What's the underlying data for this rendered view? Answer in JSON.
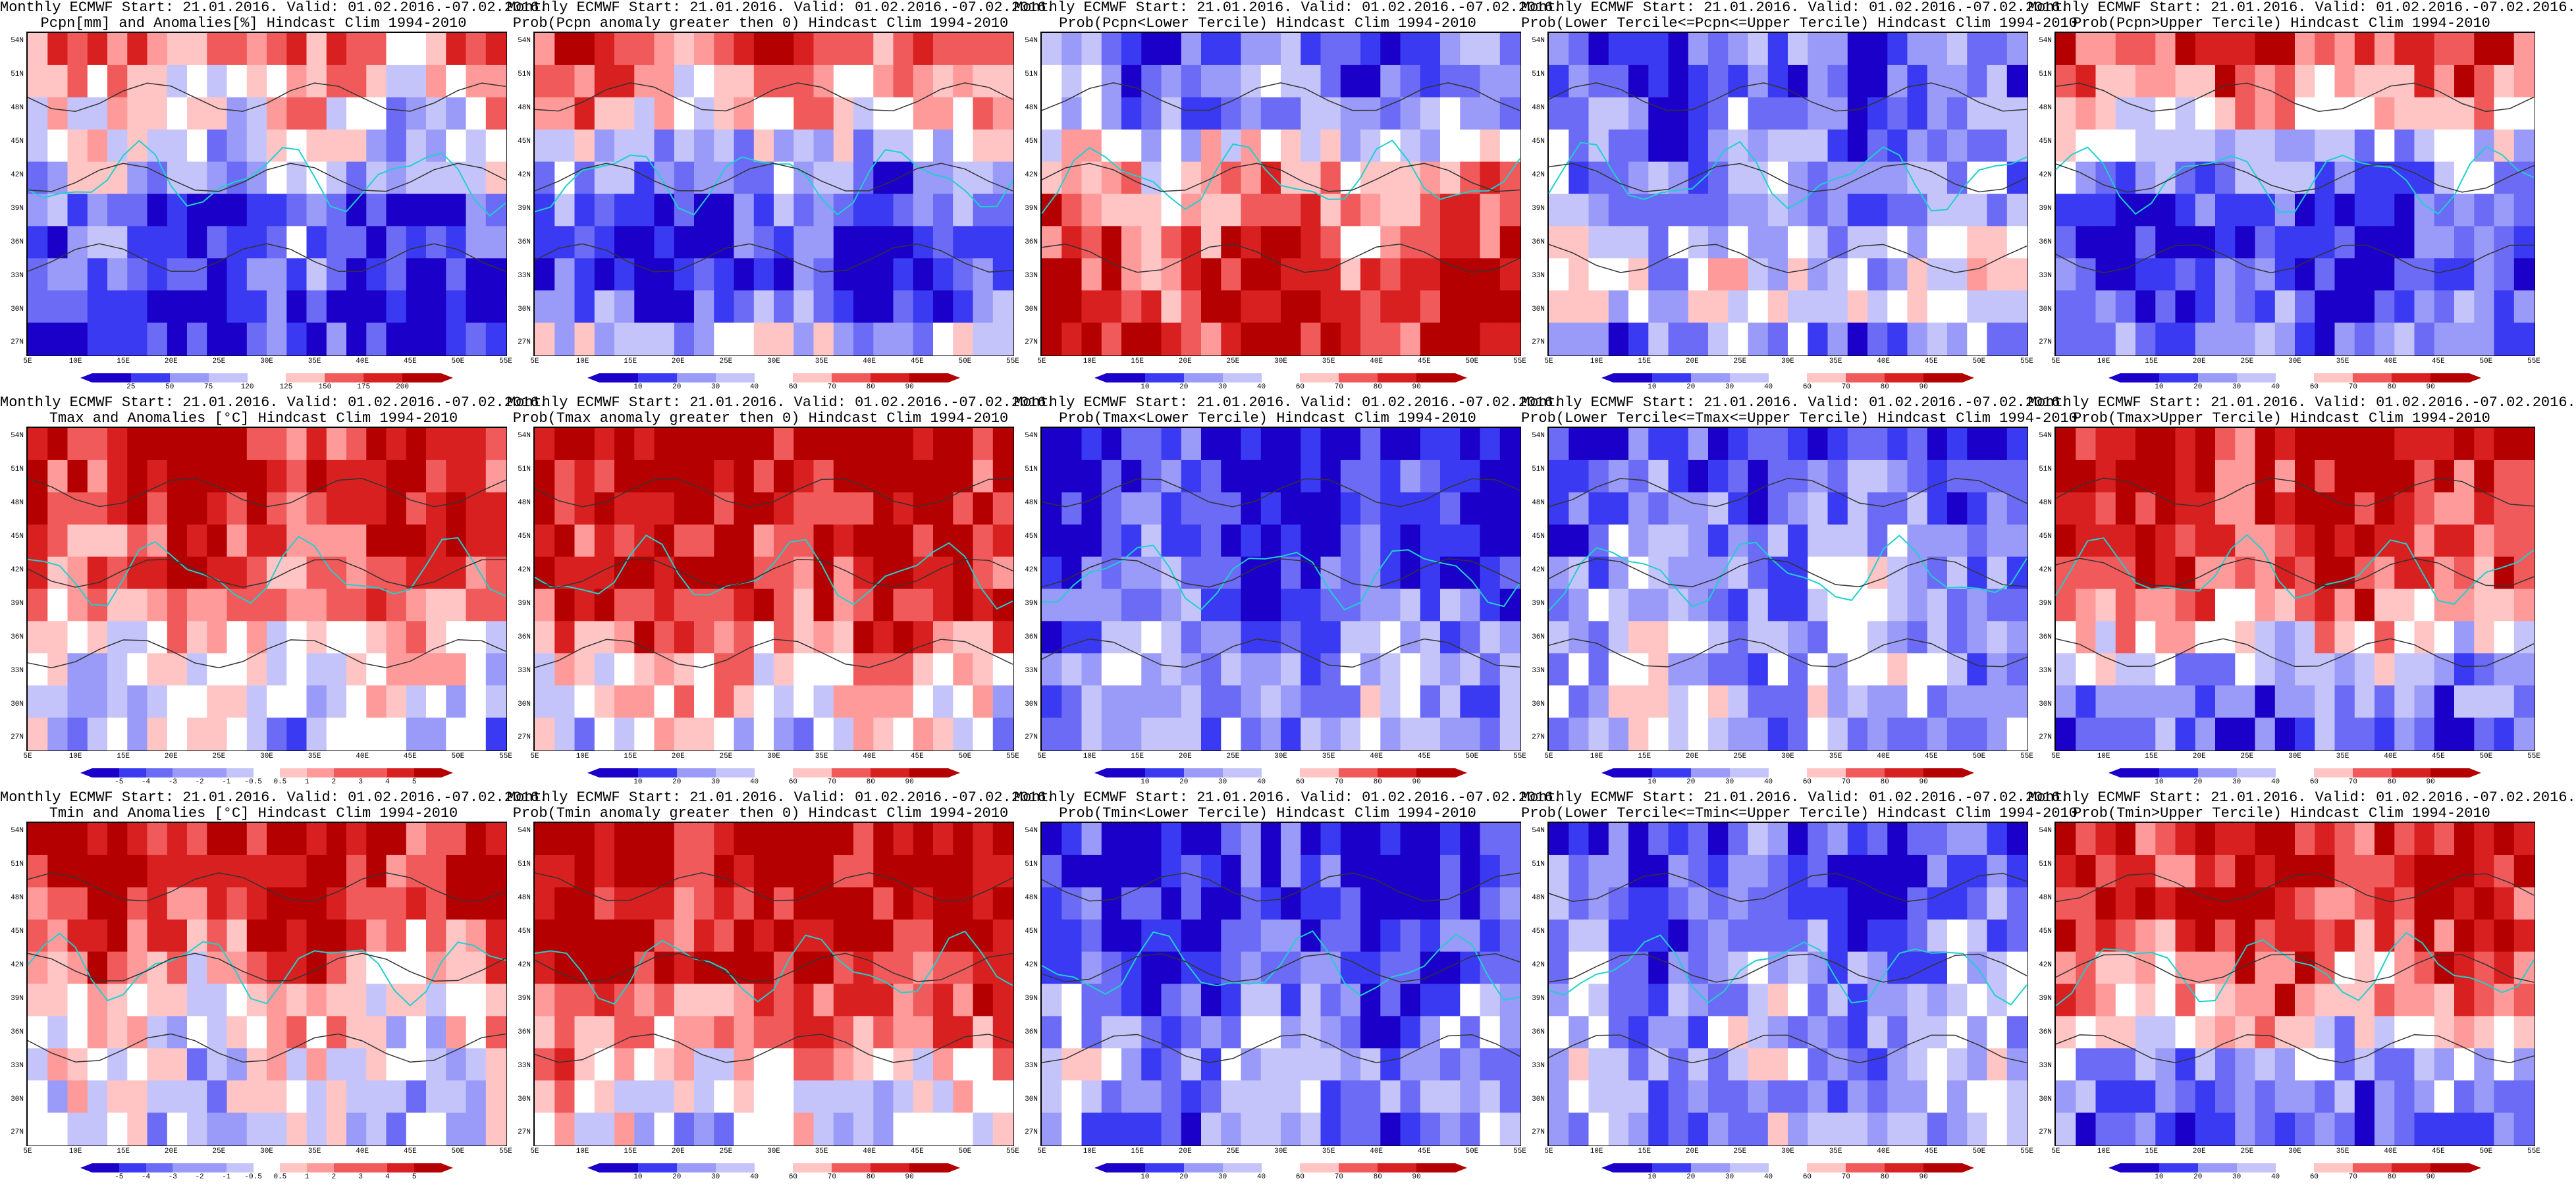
{
  "colors": {
    "blue_ramp": [
      "#1a00c8",
      "#3a3af2",
      "#6b6bf5",
      "#9a9af8",
      "#c4c4fa",
      "#ffffff",
      "#ffc4c4",
      "#ff9a9a",
      "#f05a5a",
      "#d82020",
      "#b40000"
    ],
    "contour": "#333333",
    "coast": "#1fd0d0"
  },
  "axes": {
    "y_labels": [
      "54N",
      "51N",
      "48N",
      "45N",
      "42N",
      "39N",
      "36N",
      "33N",
      "30N",
      "27N"
    ],
    "x_labels": [
      "5E",
      "10E",
      "15E",
      "20E",
      "25E",
      "30E",
      "35E",
      "40E",
      "45E",
      "50E",
      "55E"
    ]
  },
  "colorbars": {
    "anom_pcpn": [
      "25",
      "50",
      "75",
      "120",
      "125",
      "150",
      "175",
      "200"
    ],
    "anom_temp": [
      "-5",
      "-4",
      "-3",
      "-2",
      "-1",
      "-0.5",
      "0.5",
      "1",
      "2",
      "3",
      "4",
      "5"
    ],
    "prob": [
      "10",
      "20",
      "30",
      "40",
      "60",
      "70",
      "80",
      "90"
    ]
  },
  "panels": [
    {
      "t1": "Monthly ECMWF Start: 21.01.2016. Valid: 01.02.2016.-07.02.2016.",
      "t2": "Pcpn[mm] and Anomalies[%] Hindcast Clim 1994-2010",
      "cbar": "anom_pcpn",
      "tone": [
        0.7,
        0.6,
        0.5,
        0.45,
        0.35,
        0.25,
        0.2,
        0.15,
        0.1,
        0.15
      ]
    },
    {
      "t1": "Monthly ECMWF Start: 21.01.2016. Valid: 01.02.2016.-07.02.2016.",
      "t2": "Prob(Pcpn anomaly greater then 0) Hindcast Clim 1994-2010",
      "cbar": "prob",
      "tone": [
        0.8,
        0.7,
        0.6,
        0.4,
        0.3,
        0.2,
        0.15,
        0.1,
        0.2,
        0.4
      ]
    },
    {
      "t1": "Monthly ECMWF Start: 21.01.2016. Valid: 01.02.2016.-07.02.2016.",
      "t2": "Prob(Pcpn<Lower Tercile) Hindcast Clim 1994-2010",
      "cbar": "prob",
      "tone": [
        0.2,
        0.25,
        0.3,
        0.5,
        0.65,
        0.7,
        0.75,
        0.8,
        0.85,
        0.9
      ]
    },
    {
      "t1": "Monthly ECMWF Start: 21.01.2016. Valid: 01.02.2016.-07.02.2016.",
      "t2": "Prob(Lower Tercile<=Pcpn<=Upper Tercile) Hindcast Clim 1994-2010",
      "cbar": "prob",
      "tone": [
        0.2,
        0.2,
        0.3,
        0.25,
        0.3,
        0.35,
        0.4,
        0.45,
        0.5,
        0.3
      ]
    },
    {
      "t1": "Monthly ECMWF Start: 21.01.2016. Valid: 01.02.2016.-07.02.2016.",
      "t2": "Prob(Pcpn>Upper Tercile) Hindcast Clim 1994-2010",
      "cbar": "prob",
      "tone": [
        0.85,
        0.7,
        0.6,
        0.4,
        0.3,
        0.2,
        0.15,
        0.1,
        0.2,
        0.3
      ]
    },
    {
      "t1": "Monthly ECMWF Start: 21.01.2016. Valid: 01.02.2016.-07.02.2016.",
      "t2": "Tmax and Anomalies [°C] Hindcast Clim 1994-2010",
      "cbar": "anom_temp",
      "tone": [
        0.9,
        0.88,
        0.85,
        0.8,
        0.75,
        0.7,
        0.6,
        0.5,
        0.45,
        0.4
      ]
    },
    {
      "t1": "Monthly ECMWF Start: 21.01.2016. Valid: 01.02.2016.-07.02.2016.",
      "t2": "Prob(Tmax anomaly greater then 0) Hindcast Clim 1994-2010",
      "cbar": "prob",
      "tone": [
        0.95,
        0.95,
        0.92,
        0.9,
        0.88,
        0.85,
        0.75,
        0.6,
        0.55,
        0.5
      ]
    },
    {
      "t1": "Monthly ECMWF Start: 21.01.2016. Valid: 01.02.2016.-07.02.2016.",
      "t2": "Prob(Tmax<Lower Tercile) Hindcast Clim 1994-2010",
      "cbar": "prob",
      "tone": [
        0.1,
        0.1,
        0.12,
        0.15,
        0.2,
        0.25,
        0.3,
        0.35,
        0.35,
        0.3
      ]
    },
    {
      "t1": "Monthly ECMWF Start: 21.01.2016. Valid: 01.02.2016.-07.02.2016.",
      "t2": "Prob(Lower Tercile<=Tmax<=Upper Tercile) Hindcast Clim 1994-2010",
      "cbar": "prob",
      "tone": [
        0.15,
        0.2,
        0.25,
        0.3,
        0.35,
        0.35,
        0.4,
        0.4,
        0.4,
        0.35
      ]
    },
    {
      "t1": "Monthly ECMWF Start: 21.01.2016. Valid: 01.02.2016.-07.02.2016.",
      "t2": "Prob(Tmax>Upper Tercile) Hindcast Clim 1994-2010",
      "cbar": "prob",
      "tone": [
        0.9,
        0.9,
        0.88,
        0.85,
        0.8,
        0.7,
        0.55,
        0.4,
        0.3,
        0.2
      ]
    },
    {
      "t1": "Monthly ECMWF Start: 21.01.2016. Valid: 01.02.2016.-07.02.2016.",
      "t2": "Tmin and Anomalies [°C] Hindcast Clim 1994-2010",
      "cbar": "anom_temp",
      "tone": [
        0.92,
        0.9,
        0.85,
        0.78,
        0.7,
        0.6,
        0.55,
        0.5,
        0.45,
        0.4
      ]
    },
    {
      "t1": "Monthly ECMWF Start: 21.01.2016. Valid: 01.02.2016.-07.02.2016.",
      "t2": "Prob(Tmin anomaly greater then 0) Hindcast Clim 1994-2010",
      "cbar": "prob",
      "tone": [
        0.95,
        0.93,
        0.9,
        0.9,
        0.88,
        0.8,
        0.7,
        0.6,
        0.5,
        0.45
      ]
    },
    {
      "t1": "Monthly ECMWF Start: 21.01.2016. Valid: 01.02.2016.-07.02.2016.",
      "t2": "Prob(Tmin<Lower Tercile) Hindcast Clim 1994-2010",
      "cbar": "prob",
      "tone": [
        0.1,
        0.1,
        0.1,
        0.12,
        0.18,
        0.25,
        0.3,
        0.35,
        0.3,
        0.25
      ]
    },
    {
      "t1": "Monthly ECMWF Start: 21.01.2016. Valid: 01.02.2016.-07.02.2016.",
      "t2": "Prob(Lower Tercile<=Tmin<=Upper Tercile) Hindcast Clim 1994-2010",
      "cbar": "prob",
      "tone": [
        0.15,
        0.18,
        0.2,
        0.25,
        0.3,
        0.35,
        0.35,
        0.35,
        0.3,
        0.3
      ]
    },
    {
      "t1": "Monthly ECMWF Start: 21.01.2016. Valid: 01.02.2016.-07.02.2016.",
      "t2": "Prob(Tmin>Upper Tercile) Hindcast Clim 1994-2010",
      "cbar": "prob",
      "tone": [
        0.9,
        0.88,
        0.85,
        0.8,
        0.75,
        0.7,
        0.5,
        0.35,
        0.3,
        0.2
      ]
    }
  ]
}
